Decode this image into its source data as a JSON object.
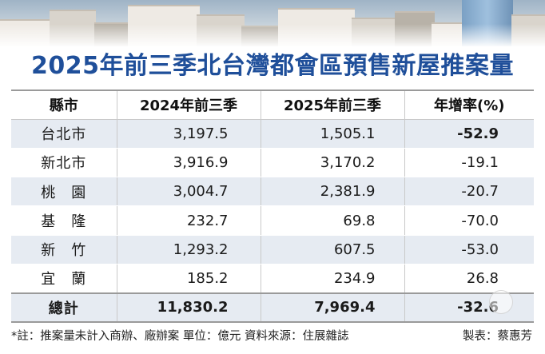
{
  "chart_data": {
    "type": "table",
    "title": "2025年前三季北台灣都會區預售新屋推案量",
    "columns": [
      "縣市",
      "2024年前三季",
      "2025年前三季",
      "年增率(%)"
    ],
    "rows": [
      {
        "region": "台北市",
        "y2024": "3,197.5",
        "y2025": "1,505.1",
        "growth": "-52.9"
      },
      {
        "region": "新北市",
        "y2024": "3,916.9",
        "y2025": "3,170.2",
        "growth": "-19.1"
      },
      {
        "region": "桃　園",
        "y2024": "3,004.7",
        "y2025": "2,381.9",
        "growth": "-20.7"
      },
      {
        "region": "基　隆",
        "y2024": "232.7",
        "y2025": "69.8",
        "growth": "-70.0"
      },
      {
        "region": "新　竹",
        "y2024": "1,293.2",
        "y2025": "607.5",
        "growth": "-53.0"
      },
      {
        "region": "宜　蘭",
        "y2024": "185.2",
        "y2025": "234.9",
        "growth": "26.8"
      }
    ],
    "total": {
      "region": "總計",
      "y2024": "11,830.2",
      "y2025": "7,969.4",
      "growth": "-32.6"
    },
    "unit": "億元"
  },
  "footer": {
    "note": "*註：推案量未計入商辦、廠辦案 單位：億元 資料來源：住展雜誌",
    "credit": "製表：蔡惠芳"
  },
  "colors": {
    "title": "#1f4f9a",
    "row_shade": "#e6ebf2"
  }
}
